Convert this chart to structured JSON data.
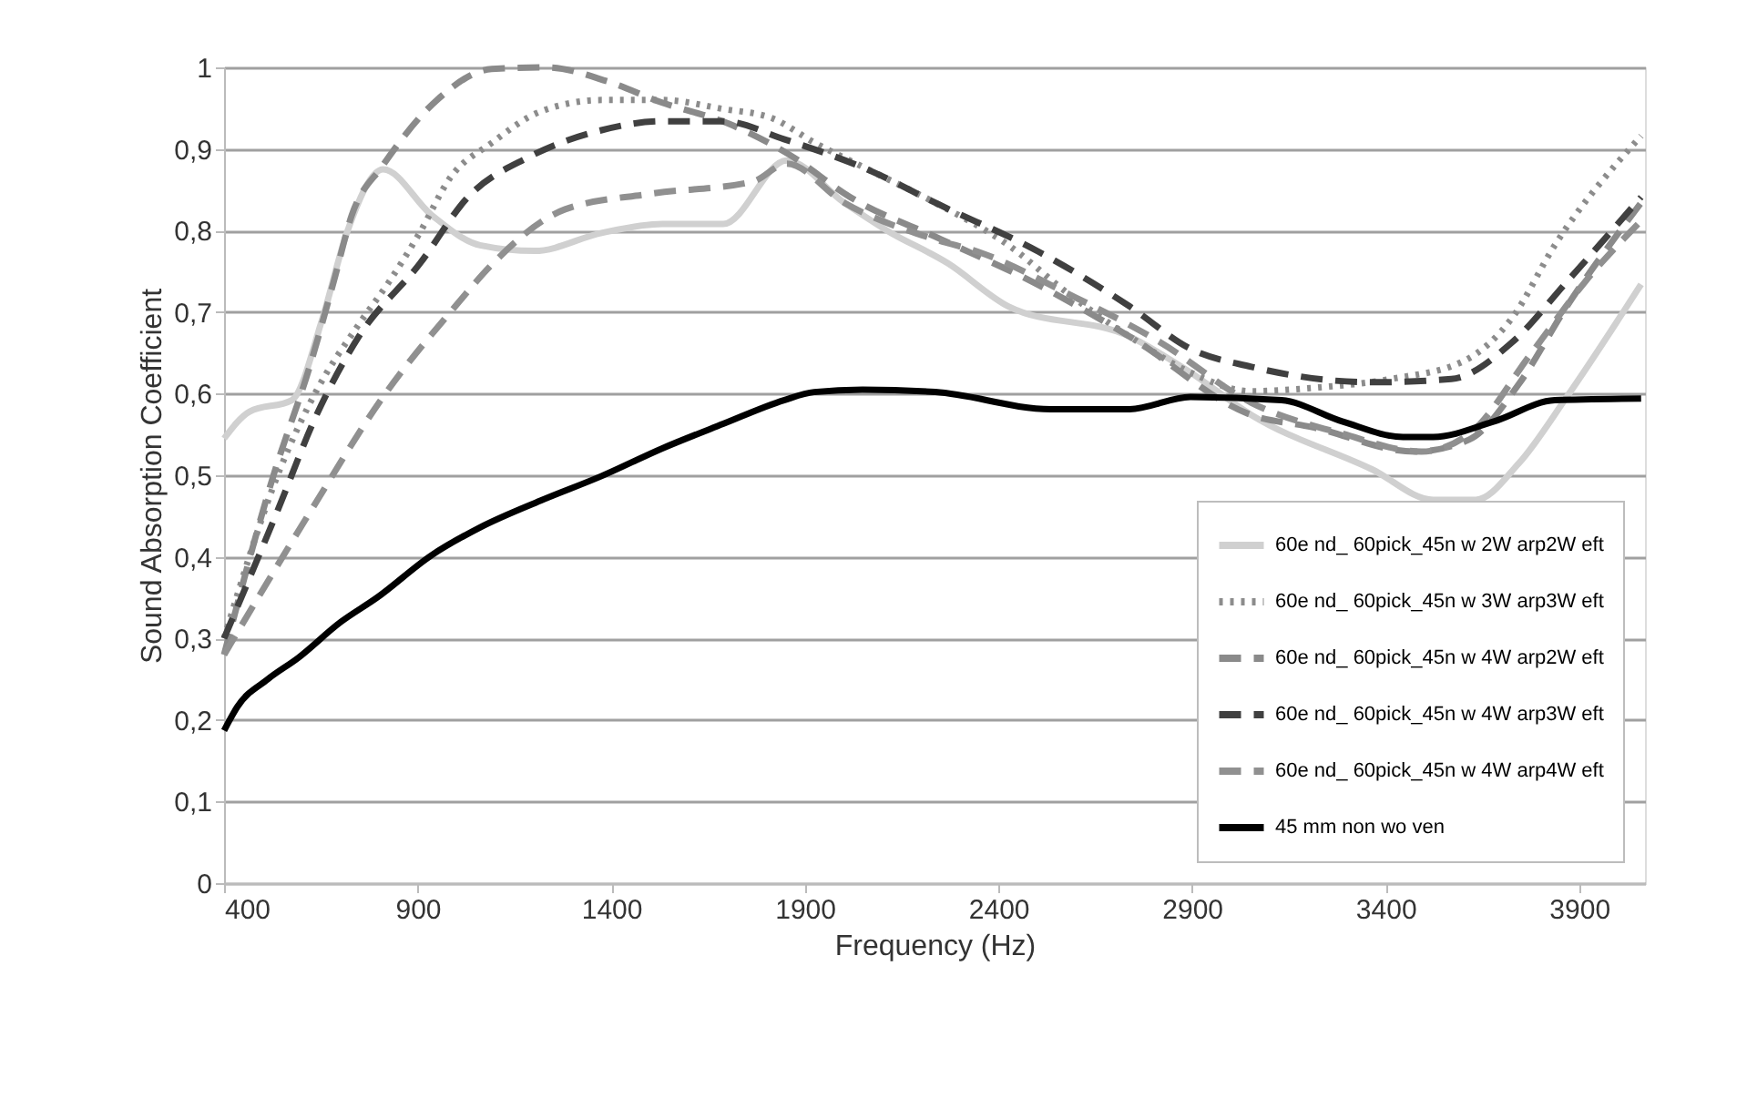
{
  "chart_data": {
    "type": "line",
    "xlabel": "Frequency (Hz)",
    "ylabel": "Sound Absorption Coefficient",
    "xlim": [
      400,
      4070
    ],
    "xticks": [
      400,
      900,
      1400,
      1900,
      2400,
      2900,
      3400,
      3900
    ],
    "ylim": [
      0,
      1
    ],
    "yticks": [
      0,
      {
        "value": 0.1,
        "label": "0,1"
      },
      {
        "value": 0.2,
        "label": "0,2"
      },
      {
        "value": 0.3,
        "label": "0,3"
      },
      {
        "value": 0.4,
        "label": "0,4"
      },
      {
        "value": 0.5,
        "label": "0,5"
      },
      {
        "value": 0.6,
        "label": "0,6"
      },
      {
        "value": 0.7,
        "label": "0,7"
      },
      {
        "value": 0.8,
        "label": "0,8"
      },
      {
        "value": 0.9,
        "label": "0,9"
      },
      1
    ],
    "grid": "y",
    "legend": "bottom right",
    "marker": "none",
    "series": [
      {
        "name": "60e nd_ 60pick_45n w 2W arp2W eft",
        "color": "#d0d0d0",
        "line_style": "solid",
        "x": [
          400,
          466,
          575,
          654,
          717,
          811,
          936,
          1061,
          1202,
          1375,
          1532,
          1689,
          1853,
          2002,
          2112,
          2269,
          2426,
          2739,
          2896,
          3053,
          3366,
          3523,
          3633,
          3743,
          3868,
          4060
        ],
        "values": [
          0.545,
          0.578,
          0.592,
          0.692,
          0.797,
          0.875,
          0.819,
          0.782,
          0.775,
          0.797,
          0.808,
          0.808,
          0.886,
          0.834,
          0.8,
          0.76,
          0.707,
          0.67,
          0.626,
          0.574,
          0.507,
          0.47,
          0.47,
          0.514,
          0.596,
          0.734
        ]
      },
      {
        "name": "60e nd_ 60pick_45n w 3W arp3W eft",
        "color": "#8c8c8c",
        "line_style": "dotted",
        "x": [
          400,
          544,
          638,
          748,
          826,
          905,
          983,
          1093,
          1218,
          1375,
          1532,
          1689,
          1814,
          1924,
          2080,
          2237,
          2426,
          2582,
          2739,
          2896,
          3053,
          3210,
          3413,
          3602,
          3727,
          3837,
          4060
        ],
        "values": [
          0.3,
          0.507,
          0.603,
          0.685,
          0.737,
          0.797,
          0.864,
          0.908,
          0.946,
          0.96,
          0.96,
          0.949,
          0.938,
          0.908,
          0.871,
          0.834,
          0.782,
          0.722,
          0.67,
          0.626,
          0.603,
          0.607,
          0.618,
          0.64,
          0.693,
          0.782,
          0.916
        ]
      },
      {
        "name": "60e nd_ 60pick_45n w 4W arp2W eft",
        "color": "#8a8a8a",
        "line_style": "dashed",
        "x": [
          400,
          527,
          621,
          683,
          730,
          809,
          950,
          1091,
          1232,
          1389,
          1530,
          1703,
          1860,
          2017,
          2253,
          2488,
          2739,
          3053,
          3210,
          3476,
          3617,
          3743,
          3868,
          4060
        ],
        "values": [
          0.28,
          0.499,
          0.633,
          0.737,
          0.819,
          0.879,
          0.96,
          0.998,
          1.0,
          0.983,
          0.957,
          0.931,
          0.893,
          0.841,
          0.789,
          0.737,
          0.67,
          0.574,
          0.559,
          0.529,
          0.544,
          0.611,
          0.707,
          0.834
        ]
      },
      {
        "name": "60e nd_ 60pick_45n w 4W arp3W eft",
        "color": "#404040",
        "line_style": "dashed",
        "x": [
          400,
          536,
          638,
          748,
          905,
          1030,
          1187,
          1375,
          1532,
          1689,
          1846,
          2080,
          2237,
          2504,
          2739,
          2896,
          3053,
          3366,
          3570,
          3727,
          3868,
          4060
        ],
        "values": [
          0.3,
          0.454,
          0.573,
          0.67,
          0.759,
          0.841,
          0.89,
          0.923,
          0.934,
          0.934,
          0.912,
          0.871,
          0.834,
          0.774,
          0.707,
          0.655,
          0.633,
          0.614,
          0.618,
          0.663,
          0.737,
          0.841
        ]
      },
      {
        "name": "60e nd_ 60pick_45n w 4W arp4W eft",
        "color": "#909090",
        "line_style": "dashed",
        "x": [
          400,
          621,
          809,
          997,
          1093,
          1281,
          1500,
          1766,
          1853,
          2002,
          2237,
          2347,
          2582,
          2818,
          3053,
          3288,
          3492,
          3617,
          3774,
          3915,
          4060
        ],
        "values": [
          0.28,
          0.454,
          0.595,
          0.707,
          0.759,
          0.826,
          0.845,
          0.86,
          0.882,
          0.834,
          0.789,
          0.774,
          0.722,
          0.663,
          0.589,
          0.551,
          0.529,
          0.551,
          0.648,
          0.737,
          0.812
        ]
      },
      {
        "name": "45 mm non wo ven",
        "color": "#000000",
        "line_style": "solid",
        "x": [
          400,
          434,
          513,
          591,
          701,
          795,
          936,
          1061,
          1218,
          1375,
          1532,
          1689,
          1846,
          1924,
          2049,
          2237,
          2535,
          2739,
          2896,
          3131,
          3288,
          3445,
          3523,
          3680,
          3837,
          4060
        ],
        "values": [
          0.187,
          0.216,
          0.25,
          0.276,
          0.32,
          0.35,
          0.402,
          0.436,
          0.469,
          0.499,
          0.533,
          0.563,
          0.592,
          0.602,
          0.605,
          0.602,
          0.581,
          0.581,
          0.596,
          0.592,
          0.566,
          0.547,
          0.547,
          0.566,
          0.592,
          0.594
        ]
      }
    ]
  }
}
